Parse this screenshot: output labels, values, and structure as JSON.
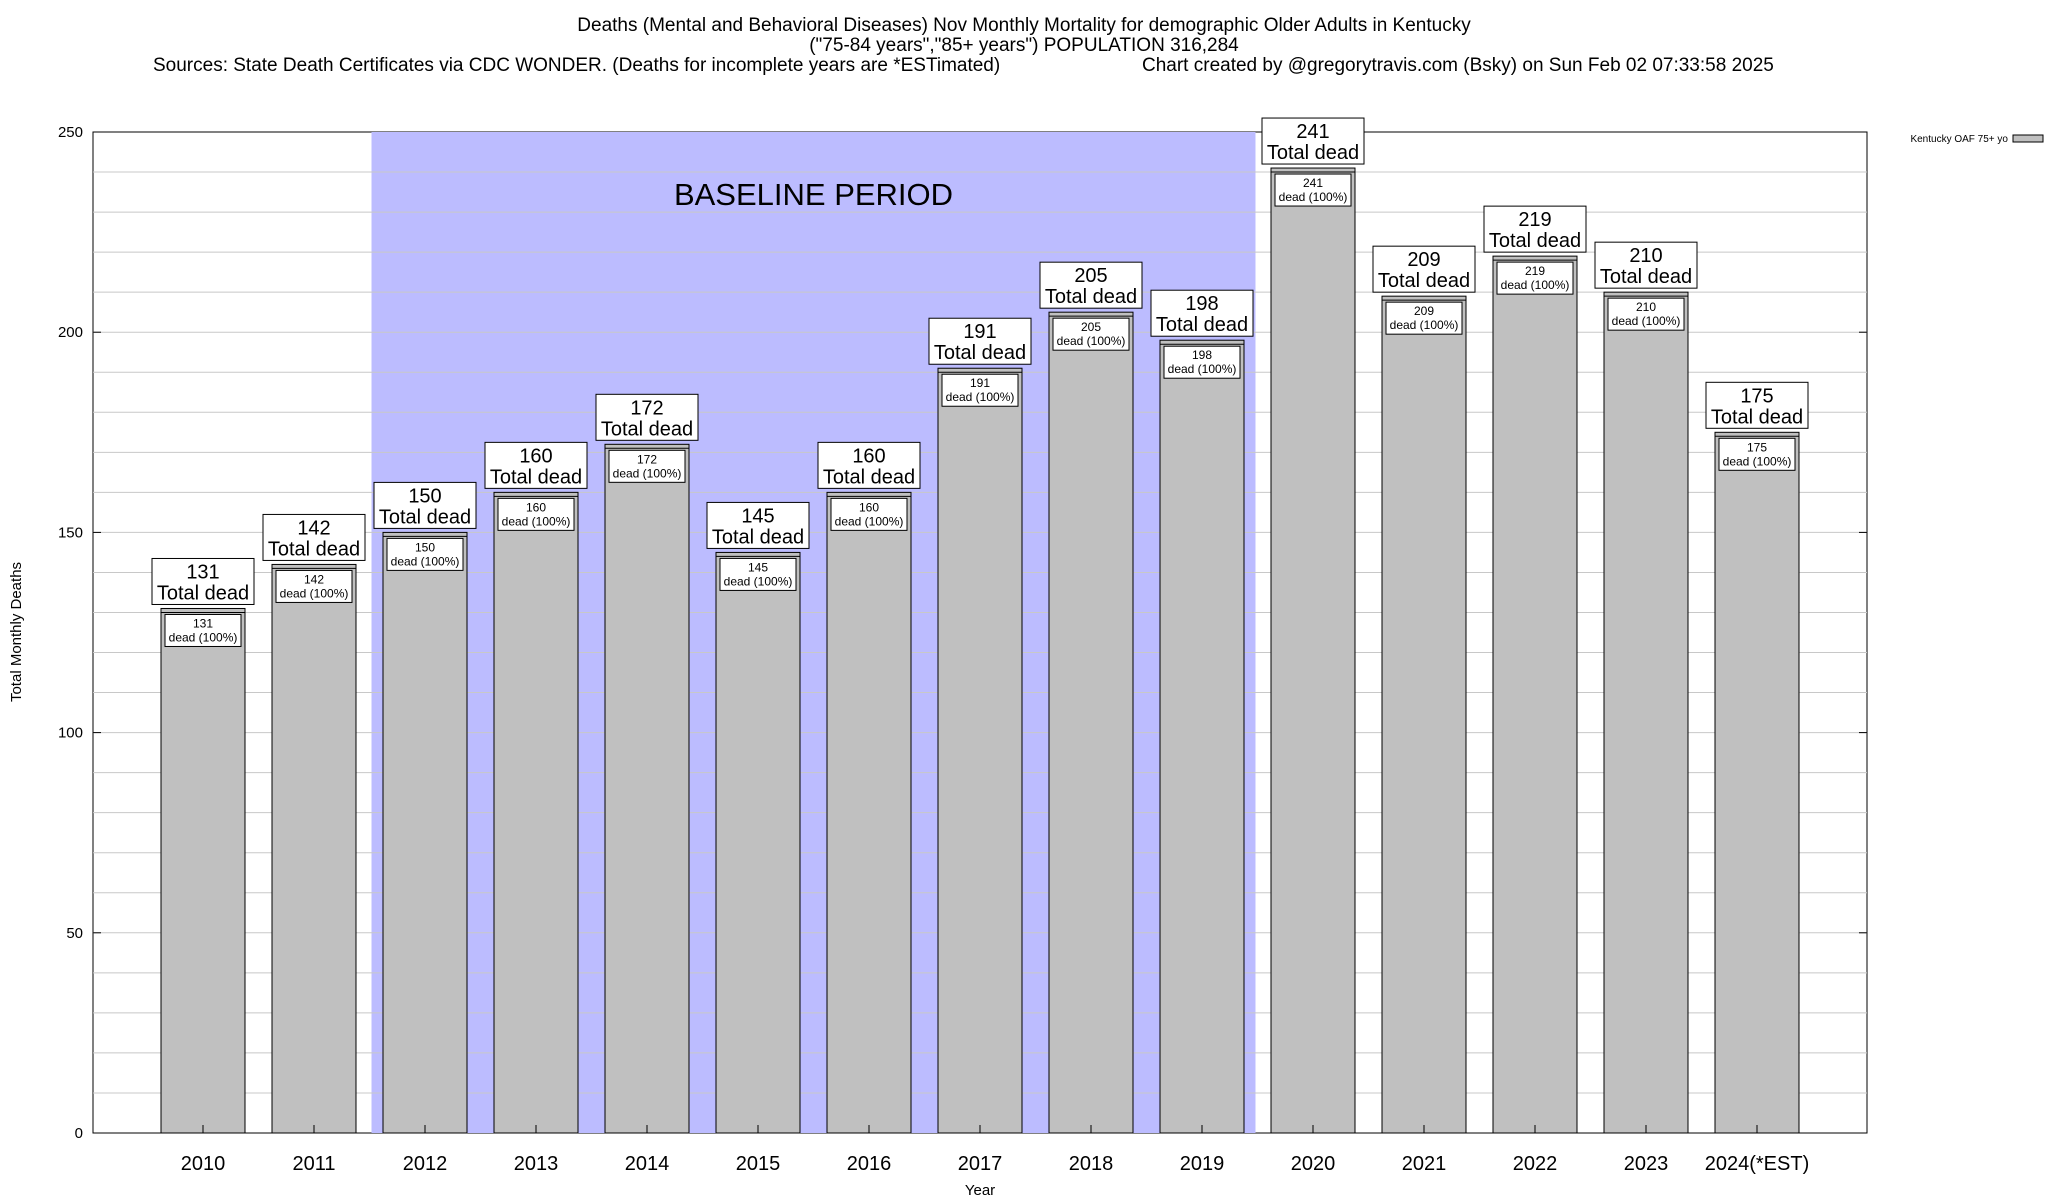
{
  "chart_data": {
    "type": "bar",
    "title_lines": [
      "Deaths (Mental and Behavioral Diseases) Nov Monthly Mortality for demographic Older Adults in Kentucky",
      "(\"75-84 years\",\"85+ years\") POPULATION 316,284"
    ],
    "sources": "Sources: State Death Certificates via CDC WONDER. (Deaths for incomplete years are *ESTimated)",
    "credit": "Chart created by @gregorytravis.com (Bsky) on Sun Feb 02 07:33:58 2025",
    "xlabel": "Year",
    "ylabel": "Total Monthly Deaths",
    "ylim": [
      0,
      250
    ],
    "yticks": [
      0,
      50,
      100,
      150,
      200,
      250
    ],
    "categories": [
      "2010",
      "2011",
      "2012",
      "2013",
      "2014",
      "2015",
      "2016",
      "2017",
      "2018",
      "2019",
      "2020",
      "2021",
      "2022",
      "2023",
      "2024(*EST)"
    ],
    "series": [
      {
        "name": "Kentucky OAF 75+ yo",
        "values": [
          131,
          142,
          150,
          160,
          172,
          145,
          160,
          191,
          205,
          198,
          241,
          209,
          219,
          210,
          175
        ]
      }
    ],
    "total_label": "Total dead",
    "inner_label": "dead (100%)",
    "baseline": {
      "label": "BASELINE PERIOD",
      "start": "2012",
      "end": "2019",
      "color": "#bcbcff"
    },
    "bar_color": "#c0c0c0",
    "grid": true,
    "legend_placement": "top-right"
  }
}
